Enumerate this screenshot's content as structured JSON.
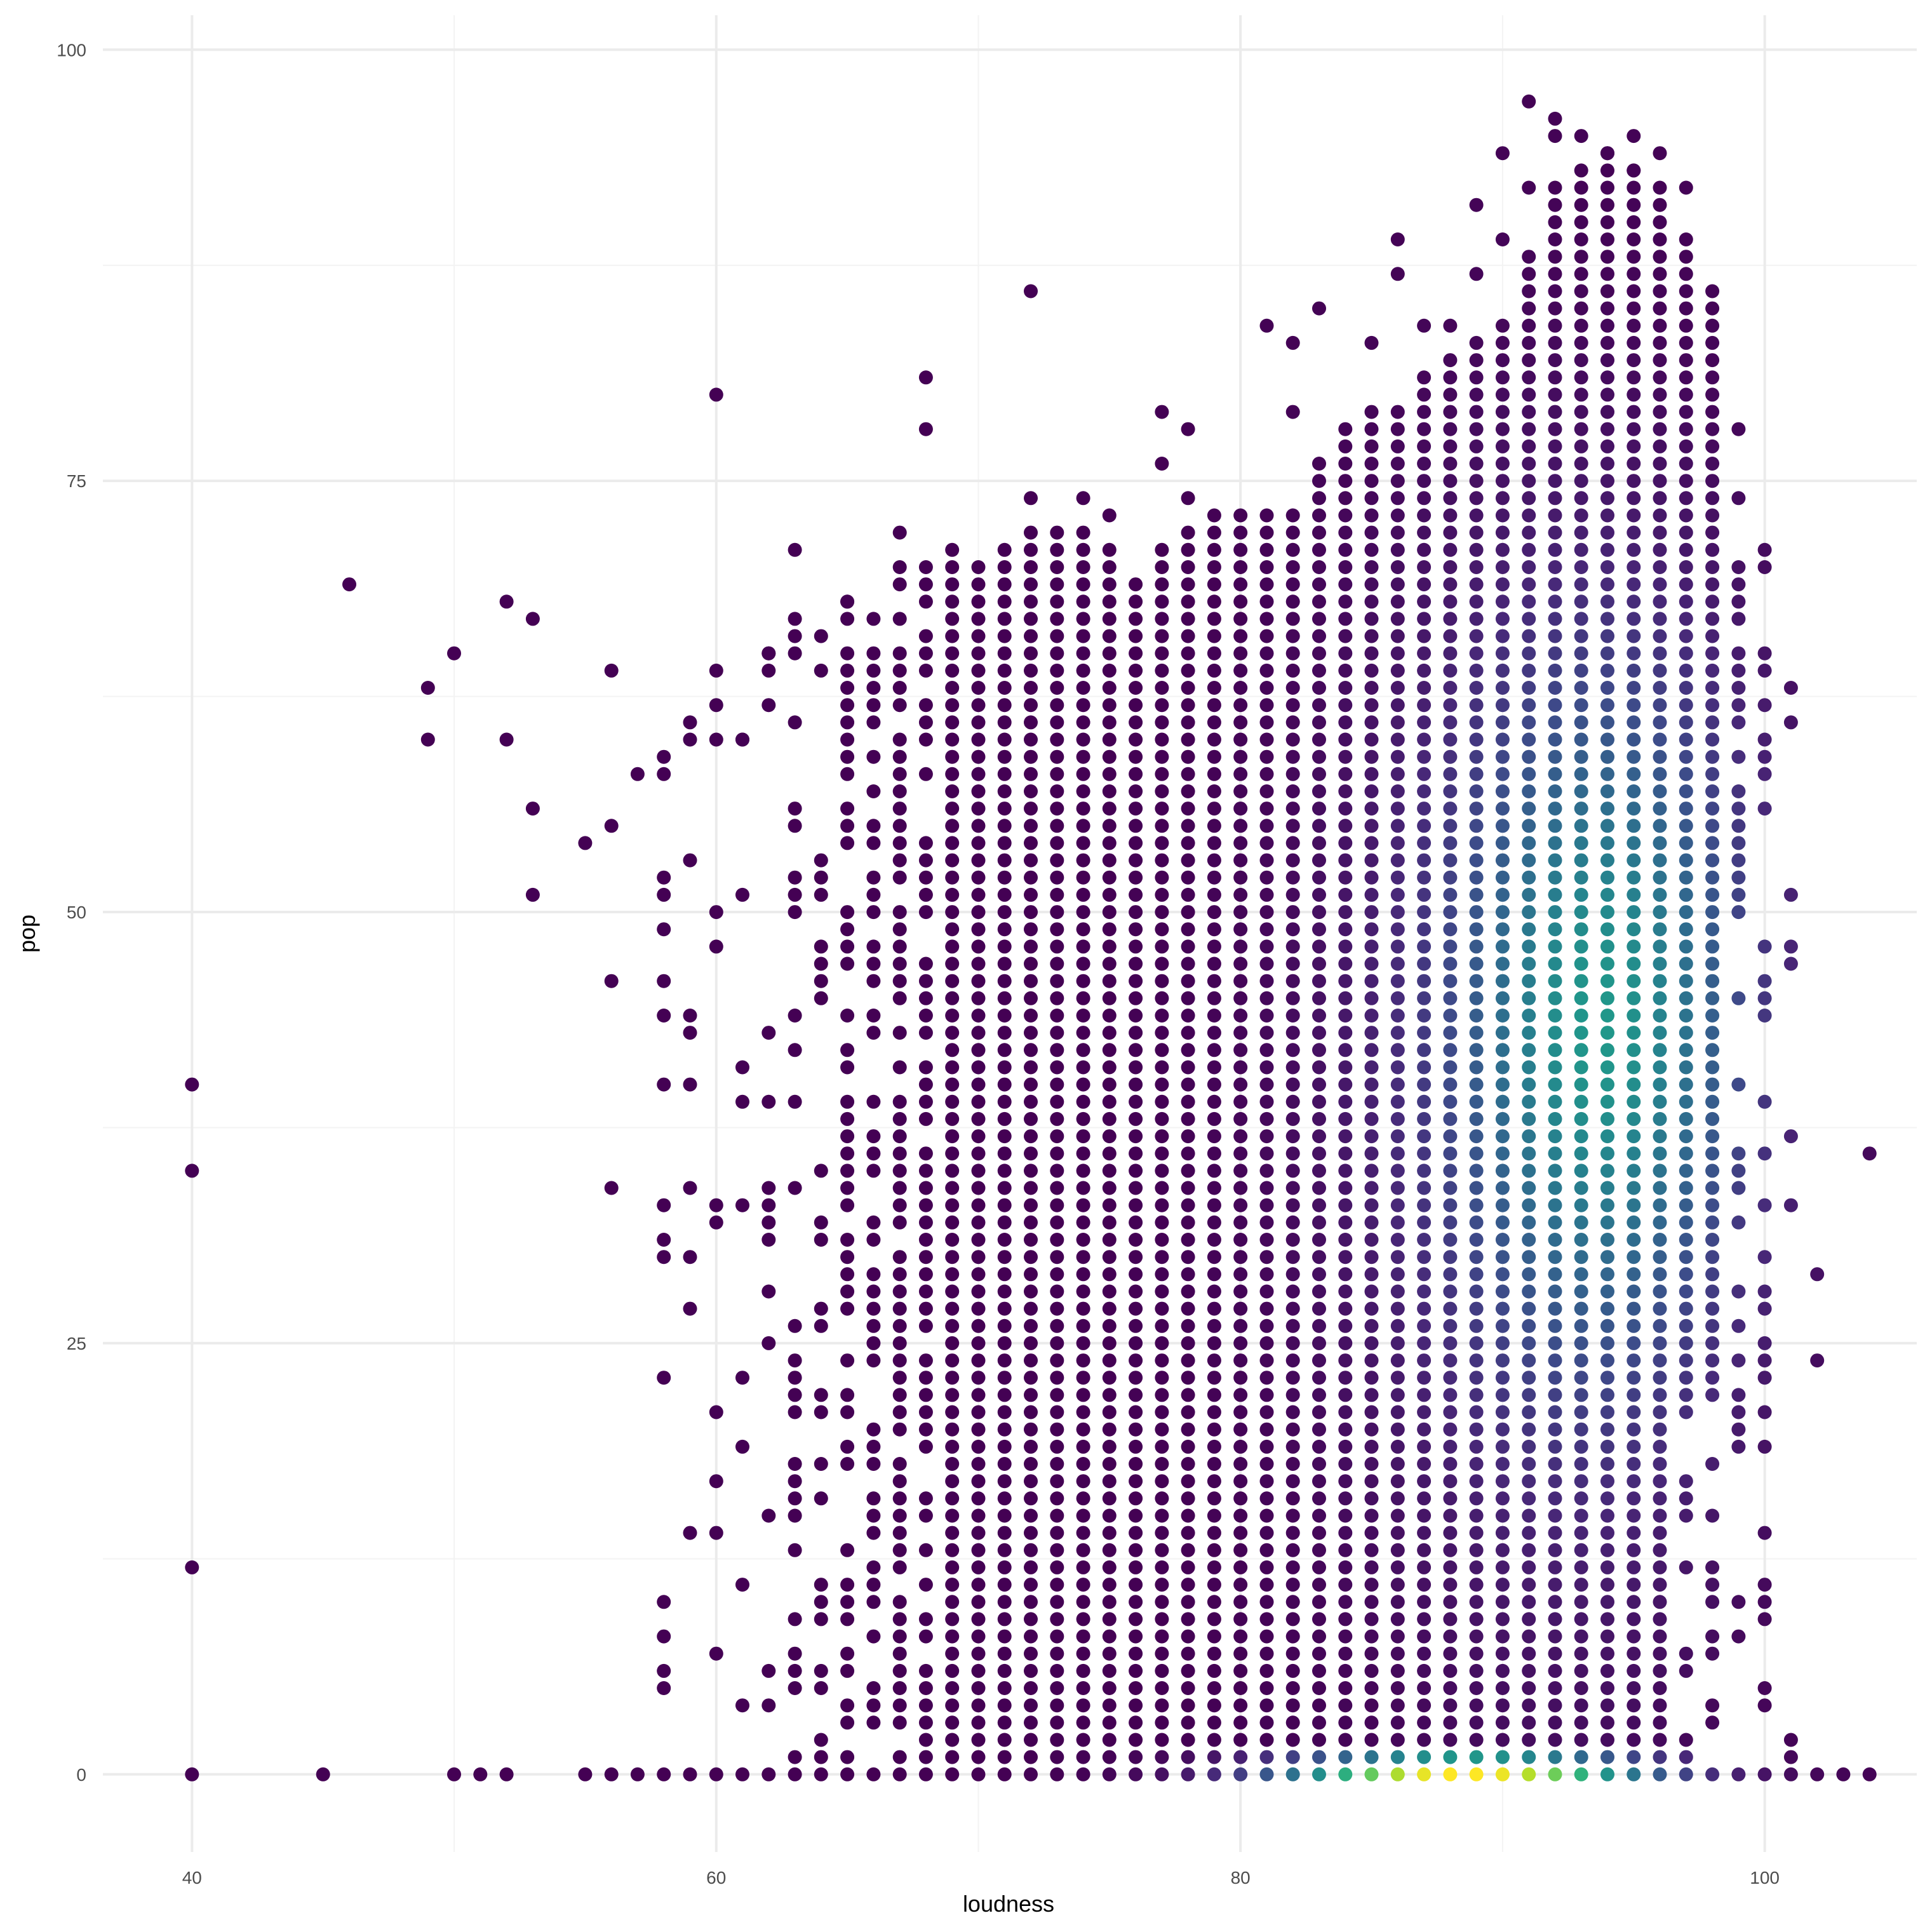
{
  "chart_data": {
    "type": "scatter",
    "title": "",
    "xlabel": "loudness",
    "ylabel": "pop",
    "xlim": [
      36.6,
      105.8
    ],
    "ylim": [
      -4.5,
      102
    ],
    "x_ticks": [
      40,
      60,
      80,
      100
    ],
    "x_tick_labels": [
      "40",
      "60",
      "80",
      "100"
    ],
    "y_ticks": [
      0,
      25,
      50,
      75,
      100
    ],
    "y_tick_labels": [
      "0",
      "25",
      "50",
      "75",
      "100"
    ],
    "x_minor_ticks": [
      50,
      70,
      90
    ],
    "y_minor_ticks": [
      12.5,
      37.5,
      62.5,
      87.5
    ],
    "grid": true,
    "legend": "none",
    "color_scale": "viridis (point density)",
    "colors": {
      "background": "#ffffff",
      "grid_major": "#ebebeb",
      "grid_minor": "#f3f3f3",
      "low_density": "#440154",
      "mid_density": "#21918c",
      "high_density": "#fde725"
    },
    "sparse_points": [
      [
        40,
        0
      ],
      [
        40,
        12
      ],
      [
        40,
        35
      ],
      [
        40,
        40
      ],
      [
        45,
        0
      ],
      [
        46,
        69
      ],
      [
        49,
        60
      ],
      [
        49,
        63
      ],
      [
        50,
        0
      ],
      [
        50,
        65
      ],
      [
        51,
        0
      ],
      [
        52,
        0
      ],
      [
        52,
        60
      ],
      [
        52,
        68
      ],
      [
        53,
        51
      ],
      [
        53,
        56
      ],
      [
        53,
        67
      ],
      [
        55,
        0
      ],
      [
        55,
        54
      ],
      [
        56,
        0
      ],
      [
        56,
        34
      ],
      [
        56,
        46
      ],
      [
        56,
        55
      ],
      [
        56,
        64
      ],
      [
        57,
        0
      ],
      [
        57,
        58
      ],
      [
        58,
        0
      ],
      [
        58,
        5
      ],
      [
        58,
        6
      ],
      [
        58,
        8
      ],
      [
        58,
        10
      ],
      [
        58,
        23
      ],
      [
        58,
        30
      ],
      [
        58,
        31
      ],
      [
        58,
        33
      ],
      [
        58,
        40
      ],
      [
        58,
        44
      ],
      [
        58,
        46
      ],
      [
        58,
        49
      ],
      [
        58,
        51
      ],
      [
        58,
        52
      ],
      [
        58,
        58
      ],
      [
        58,
        59
      ],
      [
        59,
        0
      ],
      [
        59,
        14
      ],
      [
        59,
        27
      ],
      [
        59,
        30
      ],
      [
        59,
        34
      ],
      [
        59,
        40
      ],
      [
        59,
        43
      ],
      [
        59,
        44
      ],
      [
        59,
        53
      ],
      [
        59,
        60
      ],
      [
        59,
        61
      ],
      [
        60,
        80
      ],
      [
        61,
        60
      ],
      [
        62,
        65
      ],
      [
        63,
        71
      ],
      [
        65,
        68
      ],
      [
        67,
        72
      ],
      [
        68,
        78
      ],
      [
        68,
        81
      ],
      [
        69,
        71
      ],
      [
        72,
        86
      ],
      [
        72,
        74
      ],
      [
        74,
        74
      ],
      [
        75,
        73
      ],
      [
        77,
        79
      ],
      [
        77,
        76
      ],
      [
        78,
        78
      ],
      [
        78,
        74
      ],
      [
        81,
        84
      ],
      [
        82,
        83
      ],
      [
        82,
        79
      ],
      [
        83,
        85
      ],
      [
        85,
        83
      ],
      [
        86,
        87
      ],
      [
        86,
        89
      ],
      [
        87,
        84
      ],
      [
        88,
        84
      ],
      [
        89,
        87
      ],
      [
        89,
        91
      ],
      [
        90,
        94
      ],
      [
        90,
        89
      ],
      [
        91,
        97
      ],
      [
        91,
        92
      ],
      [
        92,
        96
      ],
      [
        92,
        95
      ],
      [
        93,
        95
      ],
      [
        94,
        94
      ],
      [
        95,
        95
      ],
      [
        95,
        93
      ],
      [
        96,
        94
      ],
      [
        97,
        92
      ],
      [
        99,
        78
      ],
      [
        99,
        74
      ],
      [
        100,
        71
      ],
      [
        100,
        70
      ],
      [
        100,
        65
      ],
      [
        100,
        64
      ],
      [
        101,
        63
      ],
      [
        101,
        61
      ],
      [
        101,
        51
      ],
      [
        101,
        48
      ],
      [
        101,
        47
      ],
      [
        101,
        37
      ],
      [
        101,
        33
      ],
      [
        101,
        1
      ],
      [
        102,
        29
      ],
      [
        102,
        24
      ],
      [
        102,
        0
      ],
      [
        103,
        0
      ],
      [
        104,
        0
      ],
      [
        104,
        36
      ]
    ],
    "dense_region": {
      "description": "integer grid of points from loudness 60 to 101 and pop 0 to the upper envelope; colour scaled by point density",
      "upper_envelope": [
        [
          60,
          64
        ],
        [
          62,
          67
        ],
        [
          64,
          67
        ],
        [
          66,
          69
        ],
        [
          68,
          70
        ],
        [
          70,
          70
        ],
        [
          72,
          72
        ],
        [
          74,
          72
        ],
        [
          76,
          69
        ],
        [
          78,
          72
        ],
        [
          80,
          73
        ],
        [
          82,
          73
        ],
        [
          84,
          78
        ],
        [
          86,
          79
        ],
        [
          88,
          82
        ],
        [
          90,
          84
        ],
        [
          92,
          92
        ],
        [
          94,
          94
        ],
        [
          96,
          92
        ],
        [
          97,
          89
        ],
        [
          98,
          86
        ],
        [
          99,
          78
        ],
        [
          100,
          72
        ]
      ],
      "density_peak": {
        "x": 89,
        "y": 0
      },
      "secondary_peak": {
        "x": 94,
        "y": 44
      }
    }
  }
}
